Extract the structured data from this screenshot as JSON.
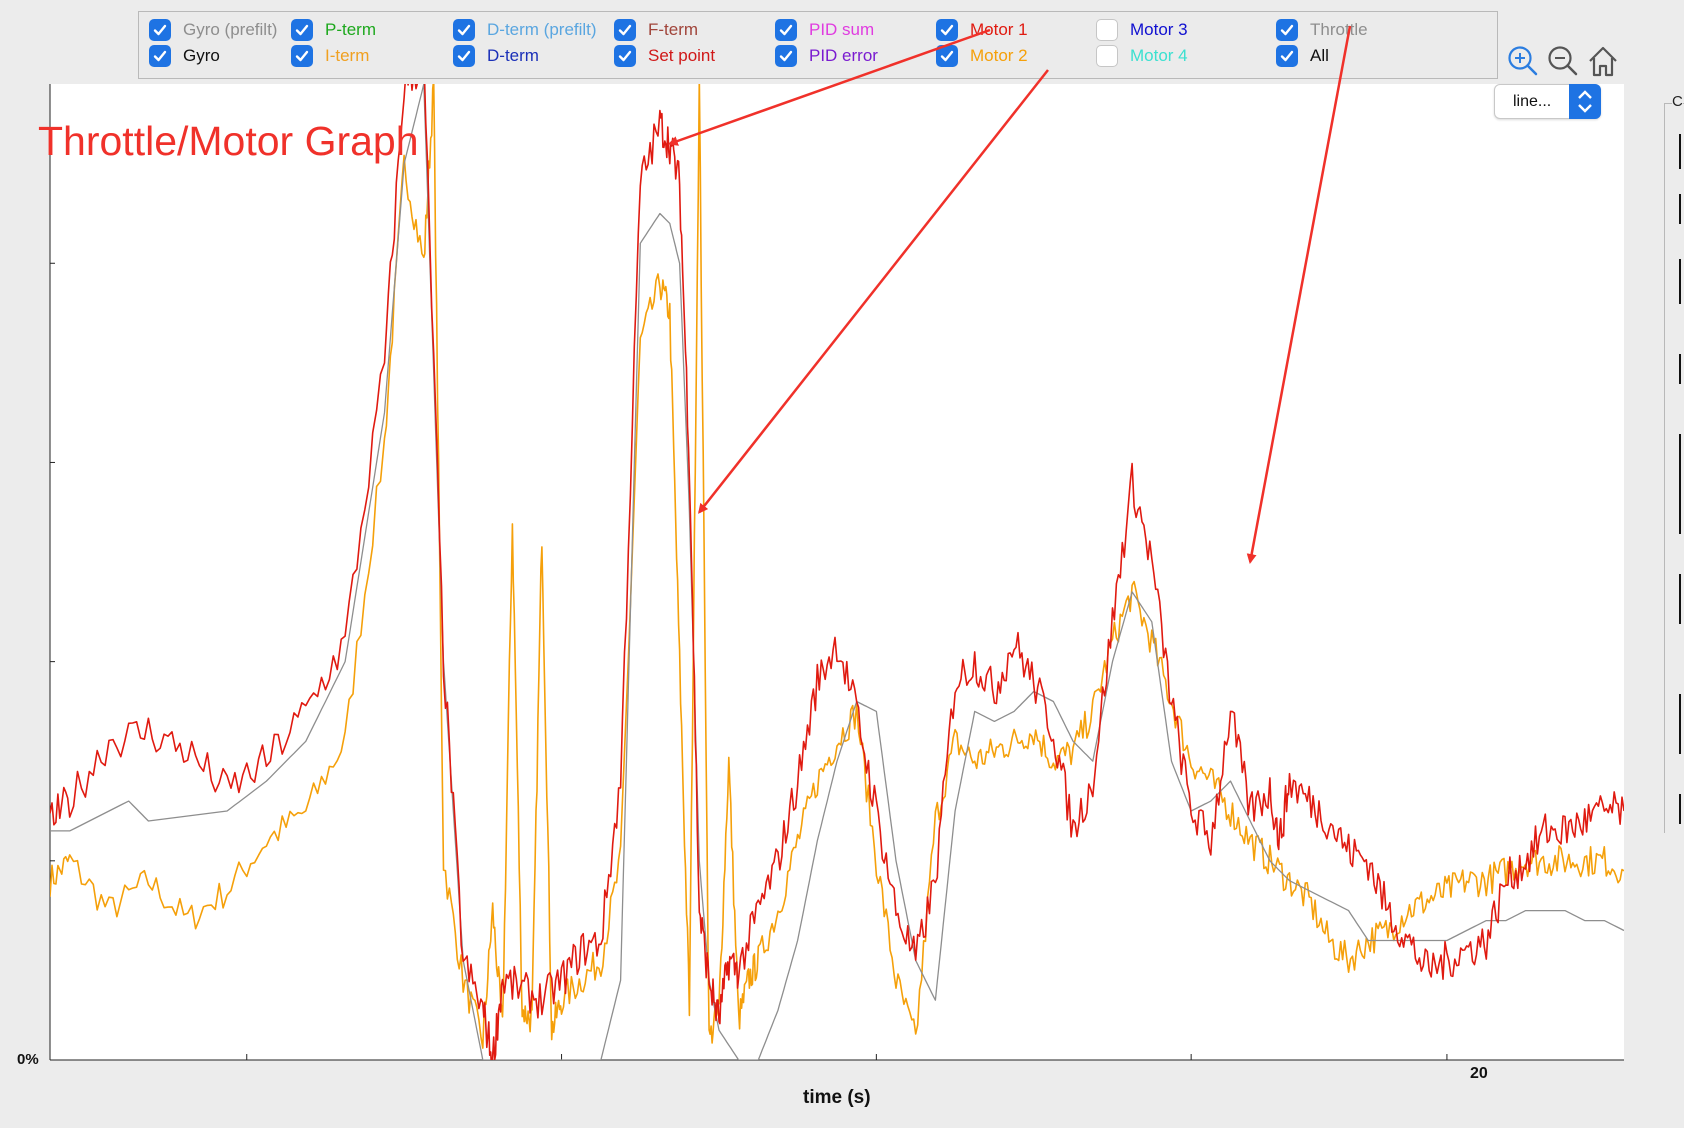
{
  "legend": {
    "items": [
      {
        "label": "Gyro (prefilt)",
        "checked": true,
        "color": "#8e8e8e"
      },
      {
        "label": "Gyro",
        "checked": true,
        "color": "#111111"
      },
      {
        "label": "P-term",
        "checked": true,
        "color": "#1da81d"
      },
      {
        "label": "I-term",
        "checked": true,
        "color": "#f0a020"
      },
      {
        "label": "D-term (prefilt)",
        "checked": true,
        "color": "#5aa6e0"
      },
      {
        "label": "D-term",
        "checked": true,
        "color": "#1b30b8"
      },
      {
        "label": "F-term",
        "checked": true,
        "color": "#a0443a"
      },
      {
        "label": "Set point",
        "checked": true,
        "color": "#d01818"
      },
      {
        "label": "PID sum",
        "checked": true,
        "color": "#e03ce0"
      },
      {
        "label": "PID error",
        "checked": true,
        "color": "#7a1bd0"
      },
      {
        "label": "Motor 1",
        "checked": true,
        "color": "#e01a10"
      },
      {
        "label": "Motor 2",
        "checked": true,
        "color": "#f5a00a"
      },
      {
        "label": "Motor 3",
        "checked": false,
        "color": "#1010d0"
      },
      {
        "label": "Motor 4",
        "checked": false,
        "color": "#3ce0d0"
      },
      {
        "label": "Throttle",
        "checked": true,
        "color": "#8e8e8e"
      },
      {
        "label": "All",
        "checked": true,
        "color": "#111111"
      }
    ]
  },
  "toolbar": {
    "zoom_in": "zoom-in-icon",
    "zoom_out": "zoom-out-icon",
    "home": "home-icon"
  },
  "dropdown": {
    "label": "line..."
  },
  "side_panel": {
    "letter": "C"
  },
  "annotation": {
    "title": "Throttle/Motor Graph",
    "color": "#f0312a"
  },
  "chart_data": {
    "type": "line",
    "title": "",
    "xlabel": "time (s)",
    "ylabel": "",
    "x_ticks": [
      {
        "label": "20",
        "value": 20
      }
    ],
    "y_ticks": [
      {
        "label": "0%",
        "value": 0
      }
    ],
    "xlim": [
      12.9,
      20.9
    ],
    "ylim": [
      0,
      98
    ],
    "grid": false,
    "legend": "top",
    "series": [
      {
        "name": "Motor 1",
        "color": "#e01a10",
        "x": [
          12.9,
          13.0,
          13.2,
          13.4,
          13.6,
          13.8,
          14.0,
          14.2,
          14.4,
          14.6,
          14.7,
          14.8,
          14.9,
          15.0,
          15.1,
          15.15,
          15.2,
          15.3,
          15.4,
          15.5,
          15.6,
          15.7,
          15.8,
          15.9,
          16.0,
          16.05,
          16.1,
          16.15,
          16.2,
          16.25,
          16.3,
          16.35,
          16.4,
          16.5,
          16.6,
          16.7,
          16.8,
          16.9,
          17.0,
          17.1,
          17.2,
          17.3,
          17.4,
          17.5,
          17.6,
          17.7,
          17.8,
          17.9,
          18.0,
          18.1,
          18.2,
          18.3,
          18.4,
          18.5,
          18.6,
          18.7,
          18.8,
          18.9,
          19.0,
          19.1,
          19.15,
          19.2,
          19.3,
          19.4,
          19.5,
          19.6,
          19.7,
          19.8,
          19.9,
          20.0,
          20.1,
          20.2,
          20.3,
          20.4,
          20.5,
          20.6,
          20.7,
          20.8,
          20.9
        ],
        "y": [
          24,
          26,
          32,
          33,
          31,
          27,
          30,
          35,
          42,
          70,
          98,
          100,
          40,
          10,
          5,
          0,
          8,
          7,
          6,
          8,
          11,
          12,
          28,
          88,
          94,
          92,
          88,
          60,
          15,
          8,
          4,
          10,
          9,
          15,
          20,
          28,
          38,
          42,
          35,
          25,
          15,
          10,
          18,
          38,
          40,
          37,
          42,
          38,
          33,
          23,
          28,
          44,
          58,
          50,
          36,
          25,
          22,
          35,
          25,
          27,
          22,
          28,
          26,
          24,
          21,
          20,
          15,
          12,
          9,
          10,
          11,
          12,
          18,
          20,
          23,
          23,
          24,
          25,
          25
        ]
      },
      {
        "name": "Motor 2",
        "color": "#f5a00a",
        "x": [
          12.9,
          13.0,
          13.2,
          13.4,
          13.6,
          13.8,
          14.0,
          14.2,
          14.4,
          14.6,
          14.7,
          14.8,
          14.85,
          14.9,
          15.0,
          15.1,
          15.15,
          15.2,
          15.25,
          15.3,
          15.35,
          15.4,
          15.45,
          15.5,
          15.6,
          15.7,
          15.8,
          15.9,
          16.0,
          16.05,
          16.1,
          16.15,
          16.2,
          16.25,
          16.3,
          16.35,
          16.4,
          16.45,
          16.5,
          16.6,
          16.7,
          16.8,
          16.9,
          17.0,
          17.1,
          17.2,
          17.3,
          17.4,
          17.5,
          17.6,
          17.7,
          17.8,
          17.9,
          18.0,
          18.1,
          18.2,
          18.3,
          18.4,
          18.5,
          18.6,
          18.7,
          18.8,
          18.9,
          19.0,
          19.1,
          19.2,
          19.3,
          19.4,
          19.5,
          19.6,
          19.7,
          19.8,
          19.9,
          20.0,
          20.1,
          20.2,
          20.3,
          20.4,
          20.5,
          20.6,
          20.7,
          20.8,
          20.9
        ],
        "y": [
          18,
          20,
          15,
          18,
          14,
          17,
          22,
          25,
          32,
          62,
          90,
          80,
          98,
          20,
          8,
          2,
          15,
          3,
          54,
          5,
          4,
          53,
          3,
          6,
          8,
          10,
          20,
          72,
          78,
          75,
          40,
          5,
          98,
          2,
          5,
          30,
          4,
          8,
          10,
          15,
          22,
          28,
          32,
          35,
          20,
          8,
          2,
          24,
          32,
          30,
          31,
          32,
          33,
          30,
          31,
          35,
          42,
          47,
          42,
          36,
          30,
          28,
          25,
          22,
          20,
          18,
          16,
          12,
          10,
          12,
          13,
          15,
          16,
          17,
          18,
          18,
          19,
          20,
          20,
          20,
          20,
          20,
          19
        ]
      },
      {
        "name": "Throttle",
        "color": "#8e8e8e",
        "x": [
          12.9,
          13.0,
          13.3,
          13.4,
          13.8,
          14.0,
          14.2,
          14.4,
          14.6,
          14.7,
          14.8,
          14.9,
          15.0,
          15.1,
          15.2,
          15.4,
          15.6,
          15.7,
          15.8,
          15.9,
          16.0,
          16.05,
          16.1,
          16.15,
          16.2,
          16.25,
          16.3,
          16.4,
          16.5,
          16.6,
          16.7,
          16.8,
          16.9,
          17.0,
          17.1,
          17.2,
          17.3,
          17.4,
          17.5,
          17.6,
          17.7,
          17.8,
          17.9,
          18.0,
          18.1,
          18.2,
          18.3,
          18.4,
          18.5,
          18.6,
          18.7,
          18.8,
          18.9,
          19.0,
          19.1,
          19.2,
          19.3,
          19.4,
          19.5,
          19.6,
          19.7,
          19.8,
          19.9,
          20.0,
          20.1,
          20.2,
          20.3,
          20.4,
          20.5,
          20.6,
          20.7,
          20.8,
          20.9
        ],
        "y": [
          23,
          23,
          26,
          24,
          25,
          28,
          32,
          40,
          65,
          90,
          98,
          40,
          10,
          0,
          0,
          0,
          0,
          0,
          8,
          82,
          85,
          84,
          80,
          55,
          20,
          8,
          3,
          0,
          0,
          5,
          12,
          22,
          30,
          36,
          35,
          20,
          10,
          6,
          25,
          35,
          34,
          35,
          37,
          36,
          32,
          30,
          40,
          47,
          44,
          30,
          25,
          26,
          28,
          24,
          20,
          18,
          17,
          16,
          15,
          12,
          12,
          12,
          12,
          12,
          13,
          14,
          14,
          15,
          15,
          15,
          14,
          14,
          13
        ]
      }
    ],
    "annotations": [
      {
        "text": "",
        "from_label": "Motor 1",
        "to": [
          16.05,
          92
        ]
      },
      {
        "text": "",
        "from_label": "Motor 2",
        "to": [
          16.2,
          55
        ]
      },
      {
        "text": "",
        "from_label": "Throttle",
        "to": [
          19.0,
          50
        ]
      }
    ]
  }
}
